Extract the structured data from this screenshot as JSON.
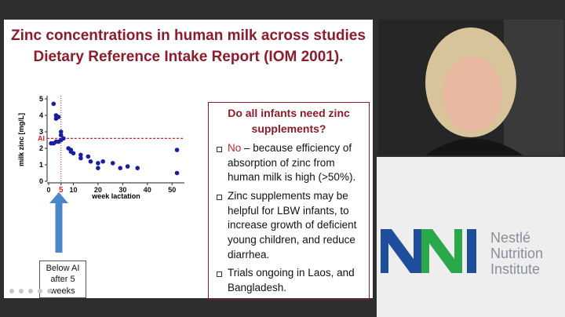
{
  "slide": {
    "title": [
      "Zinc concentrations in human milk across studies",
      "Dietary Reference Intake Report (IOM 2001)."
    ],
    "callout": [
      "Below AI",
      "after 5",
      "weeks"
    ],
    "box": {
      "heading": "Do all infants need zinc supplements?",
      "bullets": [
        {
          "lead": "No",
          "text": " – because efficiency of absorption of zinc from human milk is high (>50%)."
        },
        {
          "text": "Zinc supplements may be helpful for LBW infants, to increase growth of deficient young children, and reduce diarrhea."
        },
        {
          "text": "Trials ongoing in Laos, and Bangladesh."
        }
      ]
    }
  },
  "chart_data": {
    "type": "scatter",
    "y_label": "milk zinc [mg/L]",
    "x_label": "week lactation",
    "x": [
      2,
      3,
      3,
      4,
      1,
      2,
      3,
      4,
      5,
      5,
      6,
      5,
      8,
      9,
      9,
      10,
      13,
      13,
      16,
      17,
      20,
      20,
      22,
      26,
      29,
      32,
      36,
      52,
      52
    ],
    "values": [
      4.7,
      4.0,
      3.8,
      3.9,
      2.3,
      2.3,
      2.4,
      2.4,
      3.0,
      2.8,
      2.6,
      2.5,
      2.0,
      1.9,
      1.8,
      1.7,
      1.6,
      1.4,
      1.5,
      1.2,
      1.1,
      0.8,
      1.2,
      1.1,
      0.8,
      0.9,
      0.8,
      1.9,
      0.5
    ],
    "color": "#1c1c9e",
    "xlim": [
      0,
      55
    ],
    "ylim": [
      0,
      5
    ],
    "xticks": [
      0,
      5,
      10,
      20,
      30,
      40,
      50
    ],
    "yticks": [
      0,
      1,
      2,
      3,
      4,
      5
    ],
    "reference_lines": [
      {
        "axis": "y",
        "value": 2.6,
        "label": "AI",
        "color": "#d9262b"
      },
      {
        "axis": "x",
        "value": 5,
        "color": "#d9262b"
      }
    ]
  },
  "logo": {
    "lines": [
      "Nestlé",
      "Nutrition",
      "Institute"
    ]
  }
}
